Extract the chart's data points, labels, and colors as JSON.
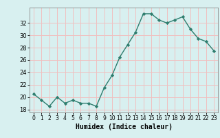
{
  "x": [
    0,
    1,
    2,
    3,
    4,
    5,
    6,
    7,
    8,
    9,
    10,
    11,
    12,
    13,
    14,
    15,
    16,
    17,
    18,
    19,
    20,
    21,
    22,
    23
  ],
  "y": [
    20.5,
    19.5,
    18.5,
    20.0,
    19.0,
    19.5,
    19.0,
    19.0,
    18.5,
    21.5,
    23.5,
    26.5,
    28.5,
    30.5,
    33.5,
    33.5,
    32.5,
    32.0,
    32.5,
    33.0,
    31.0,
    29.5,
    29.0,
    27.5
  ],
  "xlabel": "Humidex (Indice chaleur)",
  "xlim": [
    -0.5,
    23.5
  ],
  "ylim": [
    17.5,
    34.5
  ],
  "yticks": [
    18,
    20,
    22,
    24,
    26,
    28,
    30,
    32
  ],
  "xticks": [
    0,
    1,
    2,
    3,
    4,
    5,
    6,
    7,
    8,
    9,
    10,
    11,
    12,
    13,
    14,
    15,
    16,
    17,
    18,
    19,
    20,
    21,
    22,
    23
  ],
  "line_color": "#2e7d6e",
  "marker_color": "#2e7d6e",
  "bg_color": "#d8f0f0",
  "grid_color": "#f0c0c0",
  "axes_bg": "#d8f0f0"
}
